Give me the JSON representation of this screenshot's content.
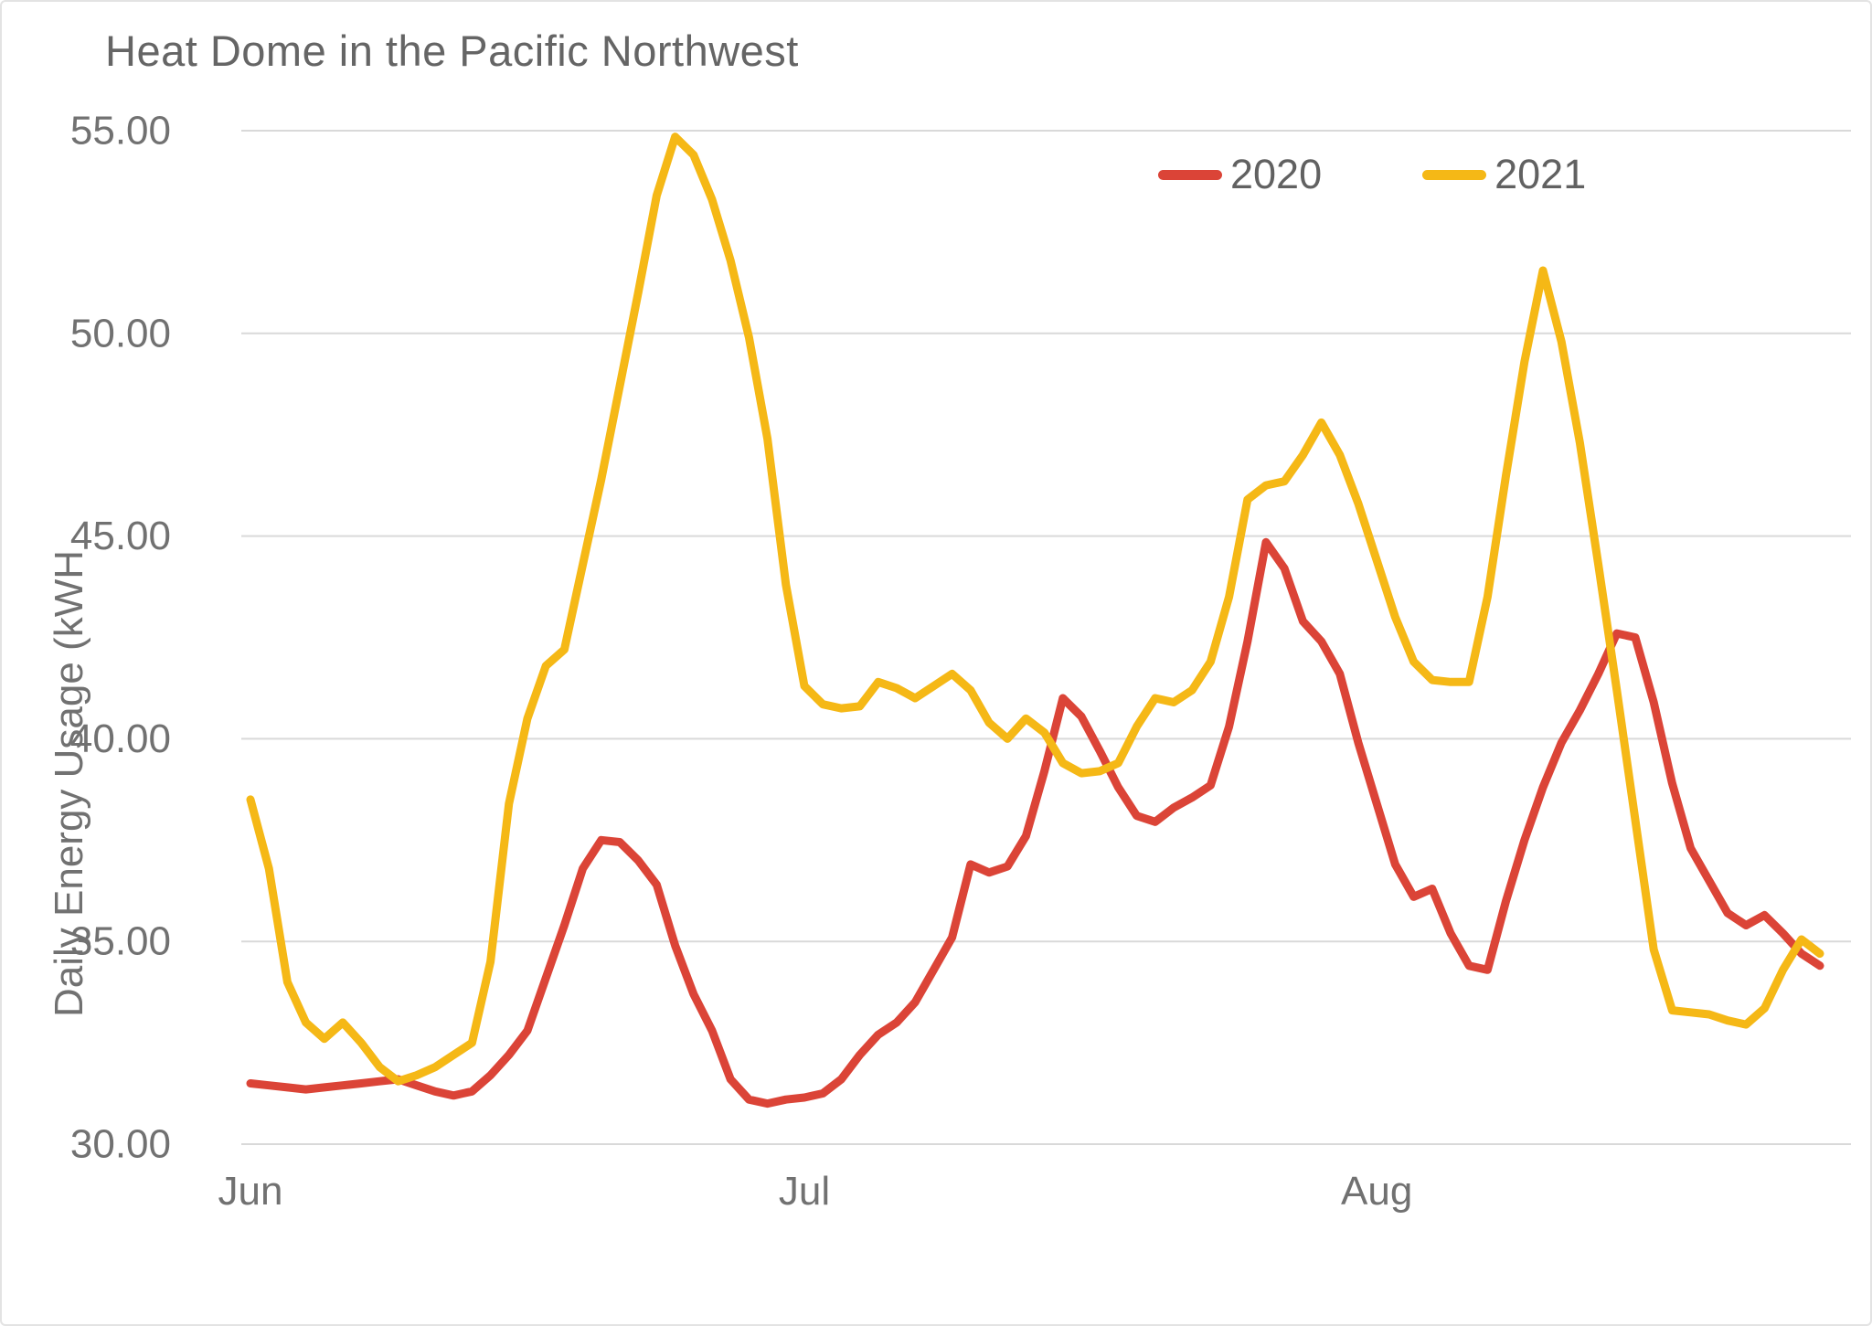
{
  "chart_data": {
    "type": "line",
    "title": "Heat Dome in the Pacific Northwest",
    "xlabel": "",
    "ylabel": "Daily Energy Usage (kWH",
    "ylim": [
      30,
      55
    ],
    "grid": true,
    "legend_position": "top-right",
    "yticks": [
      {
        "value": 55,
        "label": "55.00"
      },
      {
        "value": 50,
        "label": "50.00"
      },
      {
        "value": 45,
        "label": "45.00"
      },
      {
        "value": 40,
        "label": "40.00"
      },
      {
        "value": 35,
        "label": "35.00"
      },
      {
        "value": 30,
        "label": "30.00"
      }
    ],
    "x_month_ticks": [
      {
        "label": "Jun",
        "day_index": 0
      },
      {
        "label": "Jul",
        "day_index": 30
      },
      {
        "label": "Aug",
        "day_index": 61
      }
    ],
    "x_range_note": "daily values, Jun 1 through Aug 25",
    "series": [
      {
        "name": "2020",
        "color": "#DB4437",
        "values": [
          31.5,
          31.45,
          31.4,
          31.35,
          31.4,
          31.45,
          31.5,
          31.55,
          31.6,
          31.45,
          31.3,
          31.2,
          31.3,
          31.7,
          32.2,
          32.8,
          34.1,
          35.4,
          36.8,
          37.5,
          37.45,
          37.0,
          36.4,
          34.9,
          33.7,
          32.8,
          31.6,
          31.1,
          31.0,
          31.1,
          31.15,
          31.25,
          31.6,
          32.2,
          32.7,
          33.0,
          33.5,
          34.3,
          35.1,
          36.9,
          36.7,
          36.85,
          37.6,
          39.2,
          41.0,
          40.55,
          39.7,
          38.8,
          38.1,
          37.95,
          38.3,
          38.55,
          38.85,
          40.3,
          42.4,
          44.85,
          44.2,
          42.9,
          42.4,
          41.6,
          39.9,
          38.4,
          36.9,
          36.1,
          36.3,
          35.2,
          34.4,
          34.3,
          36.0,
          37.5,
          38.8,
          39.9,
          40.7,
          41.6,
          42.6,
          42.5,
          40.9,
          38.9,
          37.3,
          36.5,
          35.7,
          35.4,
          35.65,
          35.2,
          34.7,
          34.4
        ]
      },
      {
        "name": "2021",
        "color": "#F5B816",
        "values": [
          38.5,
          36.8,
          34.0,
          33.0,
          32.6,
          33.0,
          32.5,
          31.9,
          31.55,
          31.7,
          31.9,
          32.2,
          32.5,
          34.5,
          38.4,
          40.5,
          41.8,
          42.2,
          44.3,
          46.4,
          48.7,
          51.0,
          53.4,
          54.85,
          54.4,
          53.3,
          51.8,
          49.9,
          47.4,
          43.8,
          41.3,
          40.85,
          40.75,
          40.8,
          41.4,
          41.25,
          41.0,
          41.3,
          41.6,
          41.2,
          40.4,
          40.0,
          40.5,
          40.15,
          39.4,
          39.15,
          39.2,
          39.4,
          40.3,
          41.0,
          40.9,
          41.2,
          41.9,
          43.5,
          45.9,
          46.25,
          46.35,
          47.0,
          47.8,
          47.0,
          45.8,
          44.4,
          43.0,
          41.9,
          41.45,
          41.4,
          41.4,
          43.5,
          46.5,
          49.3,
          51.55,
          49.8,
          47.3,
          44.3,
          41.2,
          38.0,
          34.8,
          33.3,
          33.25,
          33.2,
          33.05,
          32.95,
          33.35,
          34.3,
          35.05,
          34.7
        ]
      }
    ]
  },
  "legend": {
    "items": [
      {
        "label": "2020",
        "color": "#DB4437"
      },
      {
        "label": "2021",
        "color": "#F5B816"
      }
    ]
  },
  "style": {
    "grid_color": "#d9d9d9",
    "tick_label_color": "#717171",
    "title_color": "#656565",
    "line_width": 9
  }
}
